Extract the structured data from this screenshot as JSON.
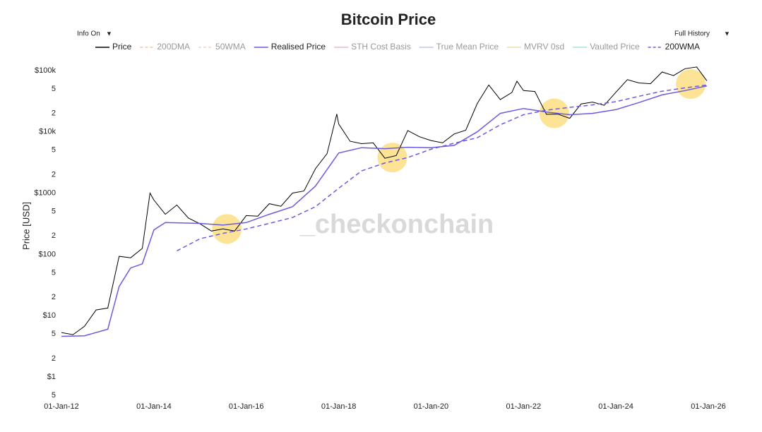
{
  "chart_data": {
    "type": "line",
    "title": "Bitcoin Price",
    "y_label": "Price [USD]",
    "watermark": "_checkonchain",
    "controls": {
      "left": "Info On",
      "right": "Full History",
      "arrow": "▼"
    },
    "log_y": true,
    "xlim": [
      "2012-01-01",
      "2026-01-01"
    ],
    "ylim": [
      0.385,
      137000
    ],
    "xticks": [
      {
        "value": "2012-01-01",
        "label": "01-Jan-12"
      },
      {
        "value": "2014-01-01",
        "label": "01-Jan-14"
      },
      {
        "value": "2016-01-01",
        "label": "01-Jan-16"
      },
      {
        "value": "2018-01-01",
        "label": "01-Jan-18"
      },
      {
        "value": "2020-01-01",
        "label": "01-Jan-20"
      },
      {
        "value": "2022-01-01",
        "label": "01-Jan-22"
      },
      {
        "value": "2024-01-01",
        "label": "01-Jan-24"
      },
      {
        "value": "2026-01-01",
        "label": "01-Jan-26"
      }
    ],
    "yticks": [
      {
        "value": 0.5,
        "label": "5"
      },
      {
        "value": 1,
        "label": "$1"
      },
      2,
      5,
      {
        "value": 10,
        "label": "$10"
      },
      {
        "value": 20,
        "label": "2"
      },
      {
        "value": 50,
        "label": "5"
      },
      {
        "value": 100,
        "label": "$100"
      },
      {
        "value": 200,
        "label": "2"
      },
      {
        "value": 500,
        "label": "5"
      },
      {
        "value": 1000,
        "label": "$1000"
      },
      {
        "value": 2000,
        "label": "2"
      },
      {
        "value": 5000,
        "label": "5"
      },
      {
        "value": 10000,
        "label": "$10k"
      },
      {
        "value": 20000,
        "label": "2"
      },
      {
        "value": 50000,
        "label": "5"
      },
      {
        "value": 100000,
        "label": "$100k"
      }
    ],
    "series": [
      {
        "name": "Price",
        "color": "#000000",
        "dash": false,
        "x": [
          "2012-01-01",
          "2012-04-01",
          "2012-07-01",
          "2012-10-01",
          "2013-01-01",
          "2013-04-01",
          "2013-07-01",
          "2013-10-01",
          "2013-12-01",
          "2014-01-01",
          "2014-04-01",
          "2014-07-01",
          "2014-10-01",
          "2015-01-01",
          "2015-04-01",
          "2015-07-01",
          "2015-10-01",
          "2016-01-01",
          "2016-04-01",
          "2016-07-01",
          "2016-10-01",
          "2017-01-01",
          "2017-04-01",
          "2017-07-01",
          "2017-10-01",
          "2017-12-17",
          "2018-01-01",
          "2018-04-01",
          "2018-07-01",
          "2018-10-01",
          "2019-01-01",
          "2019-04-01",
          "2019-07-01",
          "2019-10-01",
          "2020-01-01",
          "2020-04-01",
          "2020-07-01",
          "2020-10-01",
          "2021-01-01",
          "2021-04-01",
          "2021-07-01",
          "2021-10-01",
          "2021-11-10",
          "2022-01-01",
          "2022-04-01",
          "2022-07-01",
          "2022-10-01",
          "2023-01-01",
          "2023-04-01",
          "2023-07-01",
          "2023-10-01",
          "2024-01-01",
          "2024-04-01",
          "2024-07-01",
          "2024-10-01",
          "2025-01-01",
          "2025-04-01",
          "2025-07-01",
          "2025-10-01",
          "2025-12-20"
        ],
        "values": [
          5.3,
          4.9,
          6.7,
          12.4,
          13.3,
          93,
          88,
          125,
          1000,
          770,
          450,
          640,
          390,
          315,
          240,
          260,
          240,
          430,
          420,
          670,
          610,
          1000,
          1080,
          2500,
          4400,
          19500,
          13400,
          7000,
          6400,
          6600,
          3700,
          4100,
          10500,
          8300,
          7200,
          6600,
          9200,
          10600,
          29000,
          58000,
          33500,
          43800,
          67000,
          47000,
          45500,
          19300,
          19400,
          16600,
          28500,
          30500,
          27000,
          44200,
          71000,
          62700,
          60800,
          94400,
          82500,
          107000,
          114000,
          68000
        ]
      },
      {
        "name": "Realised Price",
        "color": "#6a5be0",
        "dash": false,
        "x": [
          "2012-01-01",
          "2012-07-01",
          "2013-01-01",
          "2013-04-01",
          "2013-07-01",
          "2013-10-01",
          "2014-01-01",
          "2014-04-01",
          "2015-01-01",
          "2015-07-01",
          "2016-01-01",
          "2016-07-01",
          "2017-01-01",
          "2017-07-01",
          "2018-01-01",
          "2018-07-01",
          "2019-01-01",
          "2019-07-01",
          "2020-01-01",
          "2020-07-01",
          "2021-01-01",
          "2021-07-01",
          "2022-01-01",
          "2022-07-01",
          "2023-01-01",
          "2023-07-01",
          "2024-01-01",
          "2024-07-01",
          "2025-01-01",
          "2025-07-01",
          "2025-12-20"
        ],
        "values": [
          4.6,
          4.7,
          6,
          30,
          60,
          70,
          250,
          330,
          320,
          300,
          330,
          450,
          600,
          1300,
          4500,
          5500,
          5300,
          5600,
          5500,
          6000,
          10000,
          20000,
          24000,
          21000,
          19000,
          20000,
          23000,
          30000,
          40000,
          47000,
          56000
        ]
      },
      {
        "name": "200WMA",
        "color": "#6a5be0",
        "dash": true,
        "x": [
          "2014-07-01",
          "2015-01-01",
          "2015-07-01",
          "2016-01-01",
          "2016-07-01",
          "2017-01-01",
          "2017-07-01",
          "2018-01-01",
          "2018-07-01",
          "2019-01-01",
          "2019-07-01",
          "2020-01-01",
          "2020-07-01",
          "2021-01-01",
          "2021-07-01",
          "2022-01-01",
          "2022-07-01",
          "2023-01-01",
          "2023-07-01",
          "2024-01-01",
          "2024-07-01",
          "2025-01-01",
          "2025-07-01",
          "2025-12-20"
        ],
        "values": [
          114,
          180,
          220,
          260,
          320,
          400,
          600,
          1200,
          2300,
          3100,
          3800,
          5200,
          6500,
          8000,
          13000,
          19000,
          22500,
          25000,
          27500,
          31000,
          38000,
          46000,
          52000,
          58000
        ]
      }
    ],
    "legend": [
      {
        "name": "Price",
        "color": "#000000",
        "dash": false,
        "active": true
      },
      {
        "name": "200DMA",
        "color": "#e8b07a",
        "dash": true,
        "active": false
      },
      {
        "name": "50WMA",
        "color": "#e8c99a",
        "dash": true,
        "active": false
      },
      {
        "name": "Realised Price",
        "color": "#6a5be0",
        "dash": false,
        "active": true
      },
      {
        "name": "STH Cost Basis",
        "color": "#e89aa8",
        "dash": false,
        "active": false
      },
      {
        "name": "True Mean Price",
        "color": "#9ab0e8",
        "dash": false,
        "active": false
      },
      {
        "name": "MVRV 0sd",
        "color": "#e8cf8a",
        "dash": false,
        "active": false
      },
      {
        "name": "Vaulted Price",
        "color": "#8ad8c0",
        "dash": false,
        "active": false
      },
      {
        "name": "200WMA",
        "color": "#6a5be0",
        "dash": true,
        "active": true
      }
    ],
    "highlights": {
      "color": "#fbd971",
      "x": [
        "2015-08-01",
        "2019-03-01",
        "2022-09-01",
        "2025-08-15"
      ],
      "values": [
        260,
        3800,
        20000,
        60000
      ]
    }
  }
}
